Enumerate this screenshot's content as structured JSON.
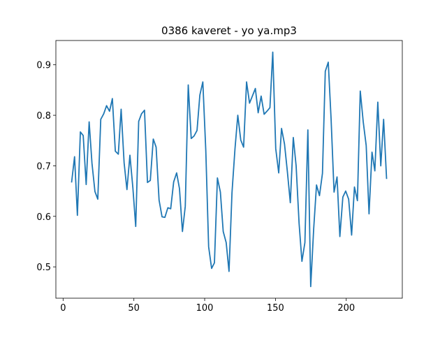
{
  "chart_data": {
    "type": "line",
    "title": "0386 kaveret - yo ya.mp3",
    "x": [
      6,
      8.1,
      10.1,
      12.2,
      14.2,
      16.3,
      18.4,
      20.4,
      22.5,
      24.5,
      26.6,
      28.7,
      30.7,
      32.8,
      34.8,
      36.9,
      39,
      41,
      43.1,
      45.1,
      47.2,
      49.3,
      51.3,
      53.4,
      55.4,
      57.5,
      59.6,
      61.6,
      63.7,
      65.7,
      67.8,
      69.9,
      71.9,
      74,
      76,
      78.1,
      80.2,
      82.2,
      84.3,
      86.3,
      88.4,
      90.5,
      92.5,
      94.6,
      96.6,
      98.7,
      100.8,
      102.8,
      104.9,
      106.9,
      109,
      111.1,
      113.1,
      115.2,
      117.2,
      119.3,
      121.4,
      123.4,
      125.5,
      127.5,
      129.6,
      131.7,
      133.7,
      135.8,
      137.8,
      139.9,
      142,
      144,
      146.1,
      148.1,
      150.2,
      152.3,
      154.3,
      156.4,
      158.4,
      160.5,
      162.6,
      164.6,
      166.7,
      168.7,
      170.8,
      172.9,
      174.9,
      177,
      179,
      181.1,
      183.2,
      185.2,
      187.3,
      189.3,
      191.4,
      193.5,
      195.5,
      197.6,
      199.6,
      201.7,
      203.8,
      205.8,
      207.9,
      209.9,
      212,
      214.1,
      216.1,
      218.2,
      220.2,
      222.3,
      224.4,
      226.4,
      228.5
    ],
    "series": [
      {
        "color": "#1f77b4",
        "values": [
          0.667,
          0.718,
          0.602,
          0.767,
          0.76,
          0.663,
          0.787,
          0.705,
          0.649,
          0.634,
          0.792,
          0.803,
          0.819,
          0.808,
          0.833,
          0.729,
          0.723,
          0.812,
          0.706,
          0.653,
          0.721,
          0.656,
          0.58,
          0.788,
          0.803,
          0.81,
          0.667,
          0.671,
          0.753,
          0.737,
          0.632,
          0.599,
          0.598,
          0.617,
          0.615,
          0.668,
          0.686,
          0.655,
          0.57,
          0.62,
          0.86,
          0.754,
          0.759,
          0.77,
          0.84,
          0.866,
          0.73,
          0.54,
          0.497,
          0.508,
          0.676,
          0.648,
          0.57,
          0.548,
          0.491,
          0.647,
          0.733,
          0.8,
          0.751,
          0.737,
          0.866,
          0.824,
          0.838,
          0.853,
          0.805,
          0.838,
          0.802,
          0.808,
          0.815,
          0.925,
          0.734,
          0.686,
          0.774,
          0.743,
          0.689,
          0.627,
          0.756,
          0.7,
          0.586,
          0.511,
          0.548,
          0.771,
          0.461,
          0.575,
          0.662,
          0.641,
          0.685,
          0.887,
          0.905,
          0.793,
          0.648,
          0.678,
          0.56,
          0.638,
          0.65,
          0.634,
          0.563,
          0.658,
          0.631,
          0.848,
          0.787,
          0.74,
          0.605,
          0.727,
          0.69,
          0.826,
          0.7,
          0.792,
          0.674
        ]
      }
    ],
    "xlim": [
      -5.1,
      239.6
    ],
    "xticks": [
      0,
      50,
      100,
      150,
      200
    ],
    "ylim": [
      0.438,
      0.948
    ],
    "yticks": [
      0.5,
      0.6,
      0.7,
      0.8,
      0.9
    ]
  }
}
